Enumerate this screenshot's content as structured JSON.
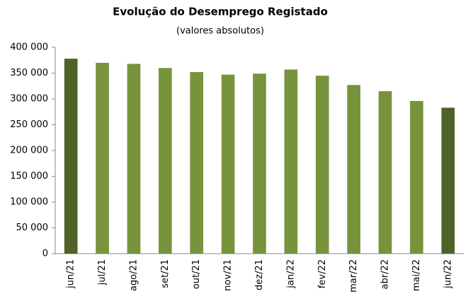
{
  "chart_data": {
    "type": "bar",
    "title": "Evolução do Desemprego Registado",
    "subtitle": "(valores absolutos)",
    "categories": [
      "jun/21",
      "jul/21",
      "ago/21",
      "set/21",
      "out/21",
      "nov/21",
      "dez/21",
      "jan/22",
      "fev/22",
      "mar/22",
      "abr/22",
      "mai/22",
      "jun/22"
    ],
    "values": [
      378000,
      370000,
      368000,
      360000,
      352000,
      347000,
      349000,
      357000,
      345000,
      327000,
      315000,
      296000,
      283000
    ],
    "colors": [
      "#4f6228",
      "#77933c",
      "#77933c",
      "#77933c",
      "#77933c",
      "#77933c",
      "#77933c",
      "#77933c",
      "#77933c",
      "#77933c",
      "#77933c",
      "#77933c",
      "#4f6228"
    ],
    "ylim": [
      0,
      400000
    ],
    "yticks": [
      0,
      {
        "value": 50000,
        "label": "50 000"
      },
      {
        "value": 100000,
        "label": "100 000"
      },
      {
        "value": 150000,
        "label": "150 000"
      },
      {
        "value": 200000,
        "label": "200 000"
      },
      {
        "value": 250000,
        "label": "250 000"
      },
      {
        "value": 300000,
        "label": "300 000"
      },
      {
        "value": 350000,
        "label": "350 000"
      },
      {
        "value": 400000,
        "label": "400 000"
      }
    ],
    "grid": false
  }
}
